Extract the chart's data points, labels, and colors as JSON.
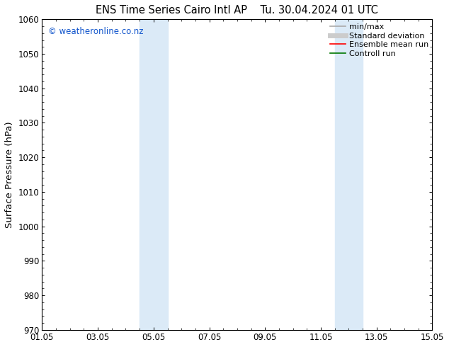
{
  "title_left": "ENS Time Series Cairo Intl AP",
  "title_right": "Tu. 30.04.2024 01 UTC",
  "ylabel": "Surface Pressure (hPa)",
  "ylim": [
    970,
    1060
  ],
  "yticks": [
    970,
    980,
    990,
    1000,
    1010,
    1020,
    1030,
    1040,
    1050,
    1060
  ],
  "xlim_days": [
    0,
    14
  ],
  "xtick_positions": [
    0,
    2,
    4,
    6,
    8,
    10,
    12,
    14
  ],
  "xtick_labels": [
    "01.05",
    "03.05",
    "05.05",
    "07.05",
    "09.05",
    "11.05",
    "13.05",
    "15.05"
  ],
  "shaded_bands": [
    {
      "x_start": 3.5,
      "x_end": 4.5
    },
    {
      "x_start": 10.5,
      "x_end": 11.5
    }
  ],
  "shade_color": "#dbeaf7",
  "watermark": "© weatheronline.co.nz",
  "watermark_color": "#1155cc",
  "legend_entries": [
    {
      "label": "min/max",
      "color": "#aaaaaa",
      "lw": 1.2
    },
    {
      "label": "Standard deviation",
      "color": "#cccccc",
      "lw": 5
    },
    {
      "label": "Ensemble mean run",
      "color": "#ff0000",
      "lw": 1.2
    },
    {
      "label": "Controll run",
      "color": "#007700",
      "lw": 1.2
    }
  ],
  "bg_color": "#ffffff",
  "axes_bg_color": "#ffffff",
  "tick_font_size": 8.5,
  "title_font_size": 10.5,
  "label_font_size": 9.5,
  "watermark_font_size": 8.5,
  "legend_font_size": 8
}
